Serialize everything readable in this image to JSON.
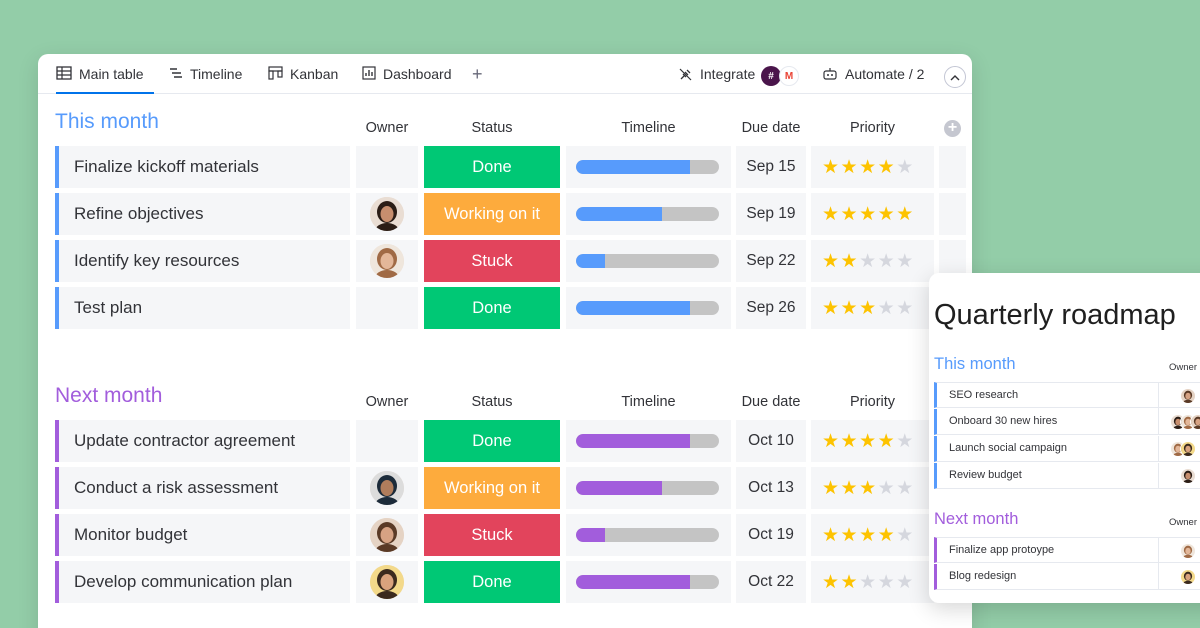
{
  "toolbar": {
    "tabs": [
      {
        "label": "Main table",
        "icon": "table-icon"
      },
      {
        "label": "Timeline",
        "icon": "timeline-icon"
      },
      {
        "label": "Kanban",
        "icon": "kanban-icon"
      },
      {
        "label": "Dashboard",
        "icon": "dashboard-icon"
      }
    ],
    "add_tab": "+",
    "integrate_label": "Integrate",
    "automate_label": "Automate / 2"
  },
  "columns": {
    "owner": "Owner",
    "status": "Status",
    "timeline": "Timeline",
    "due_date": "Due date",
    "priority": "Priority"
  },
  "groups": [
    {
      "title": "This month",
      "color": "#579bfc",
      "rows": [
        {
          "name": "Finalize kickoff materials",
          "owner": "",
          "status": "Done",
          "status_color": "#00c875",
          "timeline_progress": 0.8,
          "due": "Sep 15",
          "priority": 4
        },
        {
          "name": "Refine objectives",
          "owner": "woman-dark-hair",
          "status": "Working on it",
          "status_color": "#fdab3d",
          "timeline_progress": 0.6,
          "due": "Sep 19",
          "priority": 5
        },
        {
          "name": "Identify key resources",
          "owner": "woman-curly-hair",
          "status": "Stuck",
          "status_color": "#e2445c",
          "timeline_progress": 0.2,
          "due": "Sep 22",
          "priority": 2
        },
        {
          "name": "Test plan",
          "owner": "",
          "status": "Done",
          "status_color": "#00c875",
          "timeline_progress": 0.8,
          "due": "Sep 26",
          "priority": 3
        }
      ]
    },
    {
      "title": "Next month",
      "color": "#a25ddc",
      "rows": [
        {
          "name": "Update contractor agreement",
          "owner": "",
          "status": "Done",
          "status_color": "#00c875",
          "timeline_progress": 0.8,
          "due": "Oct 10",
          "priority": 4
        },
        {
          "name": "Conduct a risk assessment",
          "owner": "man-turban",
          "status": "Working on it",
          "status_color": "#fdab3d",
          "timeline_progress": 0.6,
          "due": "Oct 13",
          "priority": 3
        },
        {
          "name": "Monitor budget",
          "owner": "woman-brown-hair",
          "status": "Stuck",
          "status_color": "#e2445c",
          "timeline_progress": 0.2,
          "due": "Oct 19",
          "priority": 4
        },
        {
          "name": "Develop communication plan",
          "owner": "man-beard",
          "status": "Done",
          "status_color": "#00c875",
          "timeline_progress": 0.8,
          "due": "Oct 22",
          "priority": 2
        }
      ]
    }
  ],
  "side_card": {
    "title": "Quarterly roadmap",
    "owner_header": "Owner",
    "groups": [
      {
        "title": "This month",
        "color": "#579bfc",
        "rows": [
          "SEO research",
          "Onboard 30 new hires",
          "Launch social campaign",
          "Review budget"
        ]
      },
      {
        "title": "Next month",
        "color": "#a25ddc",
        "rows": [
          "Finalize app protoype",
          "Blog redesign"
        ]
      }
    ]
  }
}
